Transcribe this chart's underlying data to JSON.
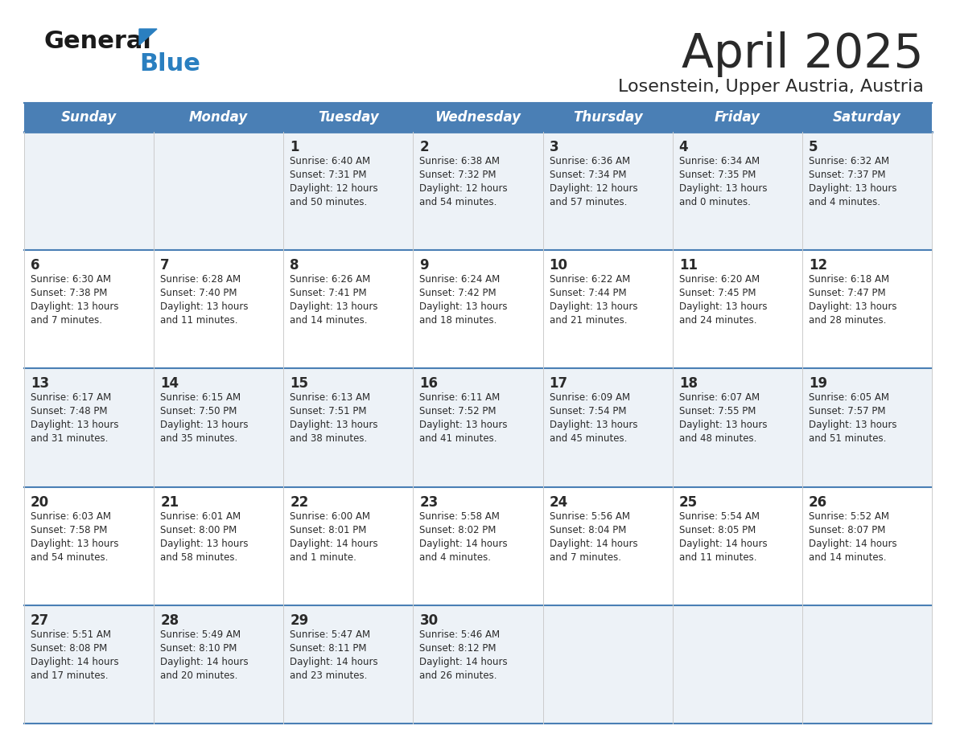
{
  "title": "April 2025",
  "subtitle": "Losenstein, Upper Austria, Austria",
  "header_bg": "#4a7fb5",
  "header_text_color": "#ffffff",
  "day_headers": [
    "Sunday",
    "Monday",
    "Tuesday",
    "Wednesday",
    "Thursday",
    "Friday",
    "Saturday"
  ],
  "cell_bg_even": "#edf2f7",
  "cell_bg_odd": "#ffffff",
  "row_line_color": "#4a7fb5",
  "text_color": "#2a2a2a",
  "logo_general_color": "#1a1a1a",
  "logo_blue_color": "#2a7fc0",
  "title_fontsize": 42,
  "subtitle_fontsize": 16,
  "header_fontsize": 12,
  "day_num_fontsize": 12,
  "cell_text_fontsize": 8.5,
  "cal": [
    [
      "",
      "",
      "1\nSunrise: 6:40 AM\nSunset: 7:31 PM\nDaylight: 12 hours\nand 50 minutes.",
      "2\nSunrise: 6:38 AM\nSunset: 7:32 PM\nDaylight: 12 hours\nand 54 minutes.",
      "3\nSunrise: 6:36 AM\nSunset: 7:34 PM\nDaylight: 12 hours\nand 57 minutes.",
      "4\nSunrise: 6:34 AM\nSunset: 7:35 PM\nDaylight: 13 hours\nand 0 minutes.",
      "5\nSunrise: 6:32 AM\nSunset: 7:37 PM\nDaylight: 13 hours\nand 4 minutes."
    ],
    [
      "6\nSunrise: 6:30 AM\nSunset: 7:38 PM\nDaylight: 13 hours\nand 7 minutes.",
      "7\nSunrise: 6:28 AM\nSunset: 7:40 PM\nDaylight: 13 hours\nand 11 minutes.",
      "8\nSunrise: 6:26 AM\nSunset: 7:41 PM\nDaylight: 13 hours\nand 14 minutes.",
      "9\nSunrise: 6:24 AM\nSunset: 7:42 PM\nDaylight: 13 hours\nand 18 minutes.",
      "10\nSunrise: 6:22 AM\nSunset: 7:44 PM\nDaylight: 13 hours\nand 21 minutes.",
      "11\nSunrise: 6:20 AM\nSunset: 7:45 PM\nDaylight: 13 hours\nand 24 minutes.",
      "12\nSunrise: 6:18 AM\nSunset: 7:47 PM\nDaylight: 13 hours\nand 28 minutes."
    ],
    [
      "13\nSunrise: 6:17 AM\nSunset: 7:48 PM\nDaylight: 13 hours\nand 31 minutes.",
      "14\nSunrise: 6:15 AM\nSunset: 7:50 PM\nDaylight: 13 hours\nand 35 minutes.",
      "15\nSunrise: 6:13 AM\nSunset: 7:51 PM\nDaylight: 13 hours\nand 38 minutes.",
      "16\nSunrise: 6:11 AM\nSunset: 7:52 PM\nDaylight: 13 hours\nand 41 minutes.",
      "17\nSunrise: 6:09 AM\nSunset: 7:54 PM\nDaylight: 13 hours\nand 45 minutes.",
      "18\nSunrise: 6:07 AM\nSunset: 7:55 PM\nDaylight: 13 hours\nand 48 minutes.",
      "19\nSunrise: 6:05 AM\nSunset: 7:57 PM\nDaylight: 13 hours\nand 51 minutes."
    ],
    [
      "20\nSunrise: 6:03 AM\nSunset: 7:58 PM\nDaylight: 13 hours\nand 54 minutes.",
      "21\nSunrise: 6:01 AM\nSunset: 8:00 PM\nDaylight: 13 hours\nand 58 minutes.",
      "22\nSunrise: 6:00 AM\nSunset: 8:01 PM\nDaylight: 14 hours\nand 1 minute.",
      "23\nSunrise: 5:58 AM\nSunset: 8:02 PM\nDaylight: 14 hours\nand 4 minutes.",
      "24\nSunrise: 5:56 AM\nSunset: 8:04 PM\nDaylight: 14 hours\nand 7 minutes.",
      "25\nSunrise: 5:54 AM\nSunset: 8:05 PM\nDaylight: 14 hours\nand 11 minutes.",
      "26\nSunrise: 5:52 AM\nSunset: 8:07 PM\nDaylight: 14 hours\nand 14 minutes."
    ],
    [
      "27\nSunrise: 5:51 AM\nSunset: 8:08 PM\nDaylight: 14 hours\nand 17 minutes.",
      "28\nSunrise: 5:49 AM\nSunset: 8:10 PM\nDaylight: 14 hours\nand 20 minutes.",
      "29\nSunrise: 5:47 AM\nSunset: 8:11 PM\nDaylight: 14 hours\nand 23 minutes.",
      "30\nSunrise: 5:46 AM\nSunset: 8:12 PM\nDaylight: 14 hours\nand 26 minutes.",
      "",
      "",
      ""
    ]
  ]
}
